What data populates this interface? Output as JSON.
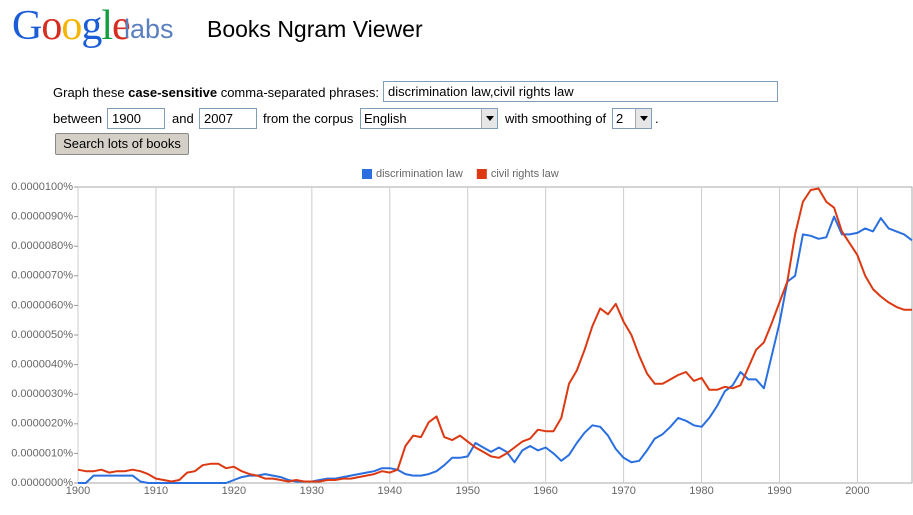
{
  "header": {
    "logo": "Google",
    "logo_suffix": "labs",
    "title": "Books Ngram Viewer"
  },
  "form": {
    "label_prefix": "Graph these",
    "label_bold": "case-sensitive",
    "label_suffix": "comma-separated phrases:",
    "phrases": "discrimination law,civil rights law",
    "between_label": "between",
    "start_year": "1900",
    "and_label": "and",
    "end_year": "2007",
    "corpus_label": "from the corpus",
    "corpus": "English",
    "smoothing_label": "with smoothing of",
    "smoothing": "2",
    "end_punct": ".",
    "button": "Search lots of books"
  },
  "chart_data": {
    "type": "line",
    "grid": true,
    "legend": "top",
    "x": [
      1900,
      1901,
      1902,
      1903,
      1904,
      1905,
      1906,
      1907,
      1908,
      1909,
      1910,
      1911,
      1912,
      1913,
      1914,
      1915,
      1916,
      1917,
      1918,
      1919,
      1920,
      1921,
      1922,
      1923,
      1924,
      1925,
      1926,
      1927,
      1928,
      1929,
      1930,
      1931,
      1932,
      1933,
      1934,
      1935,
      1936,
      1937,
      1938,
      1939,
      1940,
      1941,
      1942,
      1943,
      1944,
      1945,
      1946,
      1947,
      1948,
      1949,
      1950,
      1951,
      1952,
      1953,
      1954,
      1955,
      1956,
      1957,
      1958,
      1959,
      1960,
      1961,
      1962,
      1963,
      1964,
      1965,
      1966,
      1967,
      1968,
      1969,
      1970,
      1971,
      1972,
      1973,
      1974,
      1975,
      1976,
      1977,
      1978,
      1979,
      1980,
      1981,
      1982,
      1983,
      1984,
      1985,
      1986,
      1987,
      1988,
      1989,
      1990,
      1991,
      1992,
      1993,
      1994,
      1995,
      1996,
      1997,
      1998,
      1999,
      2000,
      2001,
      2002,
      2003,
      2004,
      2005,
      2006,
      2007
    ],
    "series": [
      {
        "name": "discrimination law",
        "color": "#2a6fe0",
        "values": [
          0,
          0,
          2.5e-07,
          2.5e-07,
          2.5e-07,
          2.5e-07,
          2.5e-07,
          2.5e-07,
          5e-08,
          0,
          0,
          0,
          0,
          0,
          0,
          0,
          0,
          0,
          0,
          0,
          1e-07,
          2e-07,
          2.5e-07,
          2.5e-07,
          3e-07,
          2.5e-07,
          2e-07,
          1e-07,
          5e-08,
          5e-08,
          5e-08,
          1e-07,
          1.5e-07,
          1.5e-07,
          2e-07,
          2.5e-07,
          3e-07,
          3.5e-07,
          4e-07,
          5e-07,
          5e-07,
          4.5e-07,
          3e-07,
          2.5e-07,
          2.5e-07,
          3e-07,
          4e-07,
          6e-07,
          8.5e-07,
          8.5e-07,
          9e-07,
          1.35e-06,
          1.2e-06,
          1.05e-06,
          1.2e-06,
          1.05e-06,
          7e-07,
          1.1e-06,
          1.25e-06,
          1.1e-06,
          1.2e-06,
          1e-06,
          7.5e-07,
          9.5e-07,
          1.35e-06,
          1.7e-06,
          1.95e-06,
          1.9e-06,
          1.6e-06,
          1.15e-06,
          8.5e-07,
          7e-07,
          7.5e-07,
          1.1e-06,
          1.5e-06,
          1.65e-06,
          1.9e-06,
          2.2e-06,
          2.1e-06,
          1.95e-06,
          1.9e-06,
          2.2e-06,
          2.6e-06,
          3.1e-06,
          3.3e-06,
          3.75e-06,
          3.5e-06,
          3.5e-06,
          3.2e-06,
          4.3e-06,
          5.4e-06,
          6.8e-06,
          7e-06,
          8.4e-06,
          8.35e-06,
          8.25e-06,
          8.3e-06,
          9e-06,
          8.4e-06,
          8.4e-06,
          8.45e-06,
          8.6e-06,
          8.5e-06,
          8.95e-06,
          8.6e-06,
          8.5e-06,
          8.4e-06,
          8.2e-06
        ]
      },
      {
        "name": "civil rights law",
        "color": "#dc3912",
        "values": [
          4.5e-07,
          4e-07,
          4e-07,
          4.5e-07,
          3.5e-07,
          4e-07,
          4e-07,
          4.5e-07,
          4e-07,
          3e-07,
          1.5e-07,
          1e-07,
          5e-08,
          1e-07,
          3.5e-07,
          4e-07,
          6e-07,
          6.5e-07,
          6.5e-07,
          5e-07,
          5.5e-07,
          4e-07,
          3e-07,
          2.5e-07,
          1.5e-07,
          1.5e-07,
          1e-07,
          5e-08,
          1e-07,
          5e-08,
          5e-08,
          5e-08,
          1e-07,
          1e-07,
          1.5e-07,
          1.5e-07,
          2e-07,
          2.5e-07,
          3e-07,
          4e-07,
          3.5e-07,
          4.5e-07,
          1.25e-06,
          1.6e-06,
          1.55e-06,
          2.05e-06,
          2.25e-06,
          1.55e-06,
          1.45e-06,
          1.6e-06,
          1.4e-06,
          1.2e-06,
          1.05e-06,
          9e-07,
          8.5e-07,
          1e-06,
          1.2e-06,
          1.4e-06,
          1.5e-06,
          1.8e-06,
          1.75e-06,
          1.75e-06,
          2.2e-06,
          3.35e-06,
          3.8e-06,
          4.5e-06,
          5.3e-06,
          5.9e-06,
          5.7e-06,
          6.05e-06,
          5.45e-06,
          5e-06,
          4.3e-06,
          3.7e-06,
          3.35e-06,
          3.35e-06,
          3.5e-06,
          3.65e-06,
          3.75e-06,
          3.45e-06,
          3.55e-06,
          3.15e-06,
          3.15e-06,
          3.25e-06,
          3.2e-06,
          3.3e-06,
          3.9e-06,
          4.5e-06,
          4.75e-06,
          5.4e-06,
          6.1e-06,
          6.8e-06,
          8.4e-06,
          9.5e-06,
          9.9e-06,
          9.95e-06,
          9.5e-06,
          9.3e-06,
          8.5e-06,
          8.1e-06,
          7.7e-06,
          7e-06,
          6.55e-06,
          6.3e-06,
          6.1e-06,
          5.95e-06,
          5.85e-06,
          5.85e-06
        ]
      }
    ],
    "xlim": [
      1900,
      2007
    ],
    "xticks": [
      1900,
      1910,
      1920,
      1930,
      1940,
      1950,
      1960,
      1970,
      1980,
      1990,
      2000
    ],
    "ylim": [
      0,
      1e-05
    ],
    "yticks": [
      {
        "value": 0,
        "label": "0.0000000%"
      },
      {
        "value": 1e-06,
        "label": "0.0000010%"
      },
      {
        "value": 2e-06,
        "label": "0.0000020%"
      },
      {
        "value": 3e-06,
        "label": "0.0000030%"
      },
      {
        "value": 4e-06,
        "label": "0.0000040%"
      },
      {
        "value": 5e-06,
        "label": "0.0000050%"
      },
      {
        "value": 6e-06,
        "label": "0.0000060%"
      },
      {
        "value": 7e-06,
        "label": "0.0000070%"
      },
      {
        "value": 8e-06,
        "label": "0.0000080%"
      },
      {
        "value": 9e-06,
        "label": "0.0000090%"
      },
      {
        "value": 1e-05,
        "label": "0.0000100%"
      }
    ]
  }
}
